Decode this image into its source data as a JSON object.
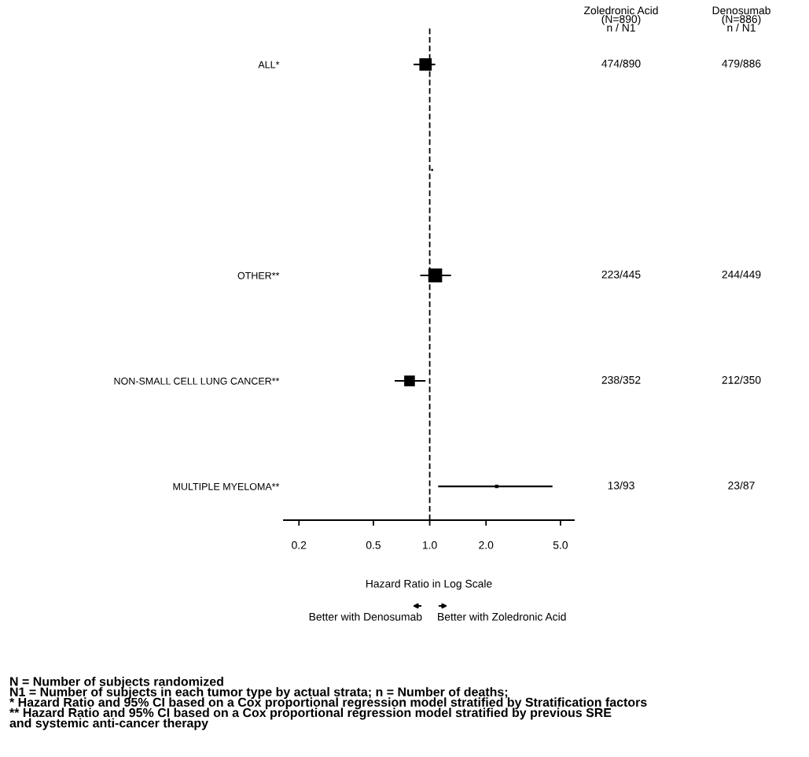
{
  "chart_data": {
    "type": "scatter",
    "orientation": "horizontal",
    "categories": [
      "ALL*",
      null,
      "OTHER**",
      "NON-SMALL CELL LUNG CANCER**",
      "MULTIPLE MYELOMA**"
    ],
    "values": [
      0.95,
      1.03,
      1.07,
      0.78,
      2.28
    ],
    "sizes": [
      0.8,
      0.02,
      1,
      0.6,
      0.06
    ],
    "errors": [
      [
        0.82,
        1.07
      ],
      null,
      [
        0.89,
        1.3
      ],
      [
        0.65,
        0.95
      ],
      [
        1.11,
        4.53
      ]
    ],
    "color": "#000000",
    "marker": "square",
    "log": "x",
    "xlim": [
      0.166,
      5.9
    ],
    "xticks": [
      {
        "value": 0.2,
        "label": "0.2"
      },
      {
        "value": 0.5,
        "label": "0.5"
      },
      {
        "value": 1,
        "label": "1.0"
      },
      {
        "value": 2,
        "label": "2.0"
      },
      {
        "value": 5,
        "label": "5.0"
      }
    ],
    "xlabel": "Hazard Ratio in Log Scale",
    "ref_lines": [
      {
        "axis": "x",
        "value": 1,
        "line_style": "dashed",
        "color": "#000000"
      }
    ],
    "grid": false,
    "legend": false,
    "annotations": [
      "Zoledronic Acid\n(N=890)\nn / N1",
      "Denosumab\n(N=886)\nn / N1",
      "Better with Denosumab",
      "Better with Zoledronic Acid",
      "N = Number of subjects randomized\nN1 = Number of subjects in each tumor type by actual strata; n = Number of deaths;\n* Hazard Ratio and 95% CI based on a Cox proportional regression model stratified by Stratification factors\n** Hazard Ratio and 95% CI based on a Cox proportional regression model stratified by previous SRE\nand systemic anti-cancer therapy",
      "474/890",
      "479/886",
      "223/445",
      "244/449",
      "238/352",
      "212/350",
      "13/93",
      "23/87"
    ]
  }
}
